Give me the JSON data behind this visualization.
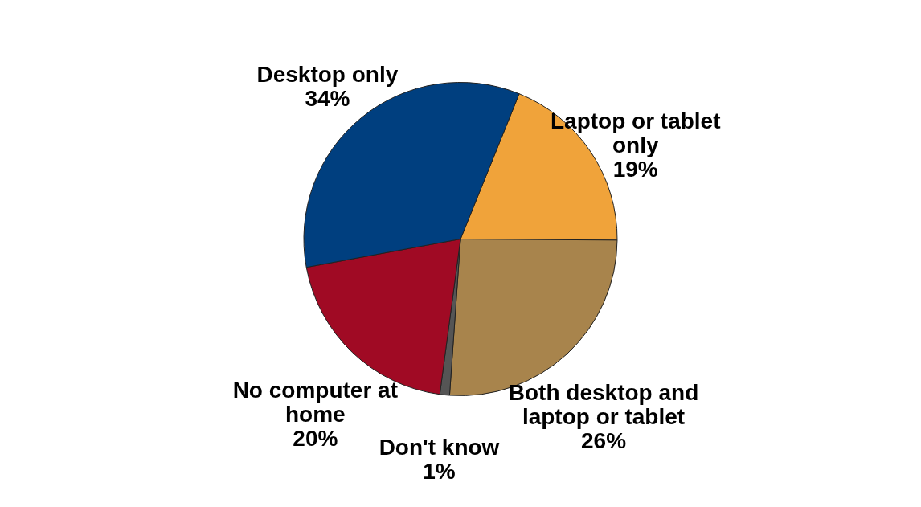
{
  "chart_data": {
    "type": "pie",
    "categories": [
      "Laptop or tablet only",
      "Both desktop and laptop or tablet",
      "Don't know",
      "No computer at home",
      "Desktop only"
    ],
    "values": [
      19,
      26,
      1,
      20,
      34
    ],
    "value_labels": [
      "19%",
      "26%",
      "1%",
      "20%",
      "34%"
    ],
    "colors": [
      "#f0a33a",
      "#a8844c",
      "#555555",
      "#a00a24",
      "#003f7f"
    ],
    "legend": false
  }
}
